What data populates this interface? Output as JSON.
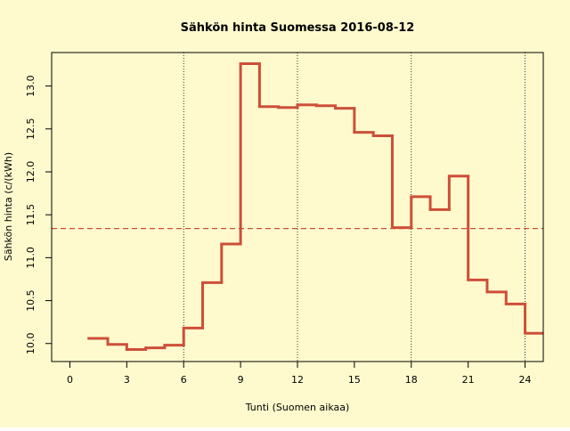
{
  "chart_data": {
    "type": "step",
    "title": "Sähkön hinta Suomessa 2016-08-12",
    "x_label": "Tunti (Suomen aikaa)",
    "y_label": "Sähkön hinta (c/(kWh)",
    "x": [
      1,
      2,
      3,
      4,
      5,
      6,
      7,
      8,
      9,
      10,
      11,
      12,
      13,
      14,
      15,
      16,
      17,
      18,
      19,
      20,
      21,
      22,
      23,
      24
    ],
    "series": [
      {
        "color": "#cd4f39",
        "values": [
          10.06,
          9.99,
          9.93,
          9.95,
          9.98,
          10.18,
          10.71,
          11.16,
          13.26,
          12.76,
          12.75,
          12.78,
          12.77,
          12.74,
          12.46,
          12.42,
          11.35,
          11.71,
          11.56,
          11.95,
          10.74,
          10.6,
          10.46,
          10.12
        ]
      }
    ],
    "mean_line": 11.34,
    "vlines": [
      6,
      12,
      18,
      24
    ],
    "xlim": [
      -0.96,
      24.96
    ],
    "ylim": [
      9.79,
      13.39
    ],
    "xticks": [
      0,
      3,
      6,
      9,
      12,
      15,
      18,
      21,
      24
    ],
    "yticks": [
      {
        "value": 10,
        "label": "10.0"
      },
      10.5,
      {
        "value": 11,
        "label": "11.0"
      },
      11.5,
      {
        "value": 12,
        "label": "12.0"
      },
      12.5,
      {
        "value": 13,
        "label": "13.0"
      }
    ],
    "background": "#fffacd"
  }
}
